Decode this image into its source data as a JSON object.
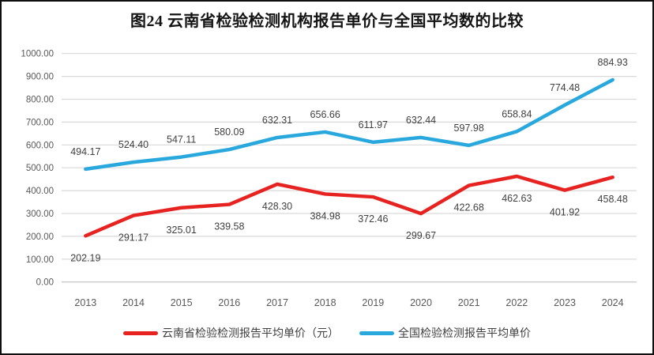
{
  "chart_data": {
    "type": "line",
    "title": "图24 云南省检验检测机构报告单价与全国平均数的比较",
    "categories": [
      "2013",
      "2014",
      "2015",
      "2016",
      "2017",
      "2018",
      "2019",
      "2020",
      "2021",
      "2022",
      "2023",
      "2024"
    ],
    "series": [
      {
        "name": "云南省检验检测报告平均单价（元）",
        "color": "#e62320",
        "label_position": "below",
        "values": [
          202.19,
          291.17,
          325.01,
          339.58,
          428.3,
          384.98,
          372.46,
          299.67,
          422.68,
          462.63,
          401.92,
          458.48
        ]
      },
      {
        "name": "全国检验检测报告平均单价",
        "color": "#29a8dd",
        "label_position": "above",
        "values": [
          494.17,
          524.4,
          547.11,
          580.09,
          632.31,
          656.66,
          611.97,
          632.44,
          597.98,
          658.84,
          774.48,
          884.93
        ]
      }
    ],
    "ylim": [
      0,
      1000
    ],
    "y_tick_step": 100,
    "y_ticks": [
      "0.00",
      "100.00",
      "200.00",
      "300.00",
      "400.00",
      "500.00",
      "600.00",
      "700.00",
      "800.00",
      "900.00",
      "1000.00"
    ],
    "data_labels": true,
    "grid": "horizontal",
    "legend_position": "bottom"
  },
  "colors": {
    "gridline": "#d9d9d9",
    "axis_line": "#bfbfbf",
    "tick_text": "#595959",
    "data_label_text": "#3f3f3f",
    "title_text": "#141414",
    "frame_border": "#0f0f0f"
  }
}
